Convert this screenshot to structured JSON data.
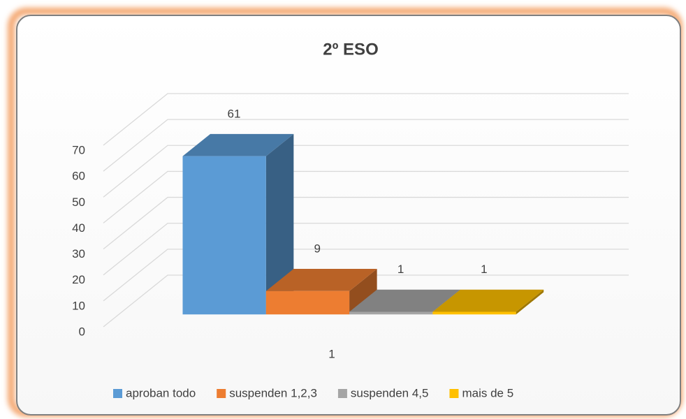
{
  "chart_data": {
    "type": "bar",
    "title": "2º ESO",
    "categories": [
      "1"
    ],
    "series": [
      {
        "name": "aproban todo",
        "color": "#5b9bd5",
        "values": [
          61
        ]
      },
      {
        "name": "suspenden 1,2,3",
        "color": "#ed7d31",
        "values": [
          9
        ]
      },
      {
        "name": "suspenden 4,5",
        "color": "#a5a5a5",
        "values": [
          1
        ]
      },
      {
        "name": "mais de 5",
        "color": "#ffc000",
        "values": [
          1
        ]
      }
    ],
    "ylim": [
      0,
      70
    ],
    "yticks": [
      0,
      10,
      20,
      30,
      40,
      50,
      60,
      70
    ],
    "grid": true,
    "legend": "bottom",
    "three_d": true
  }
}
